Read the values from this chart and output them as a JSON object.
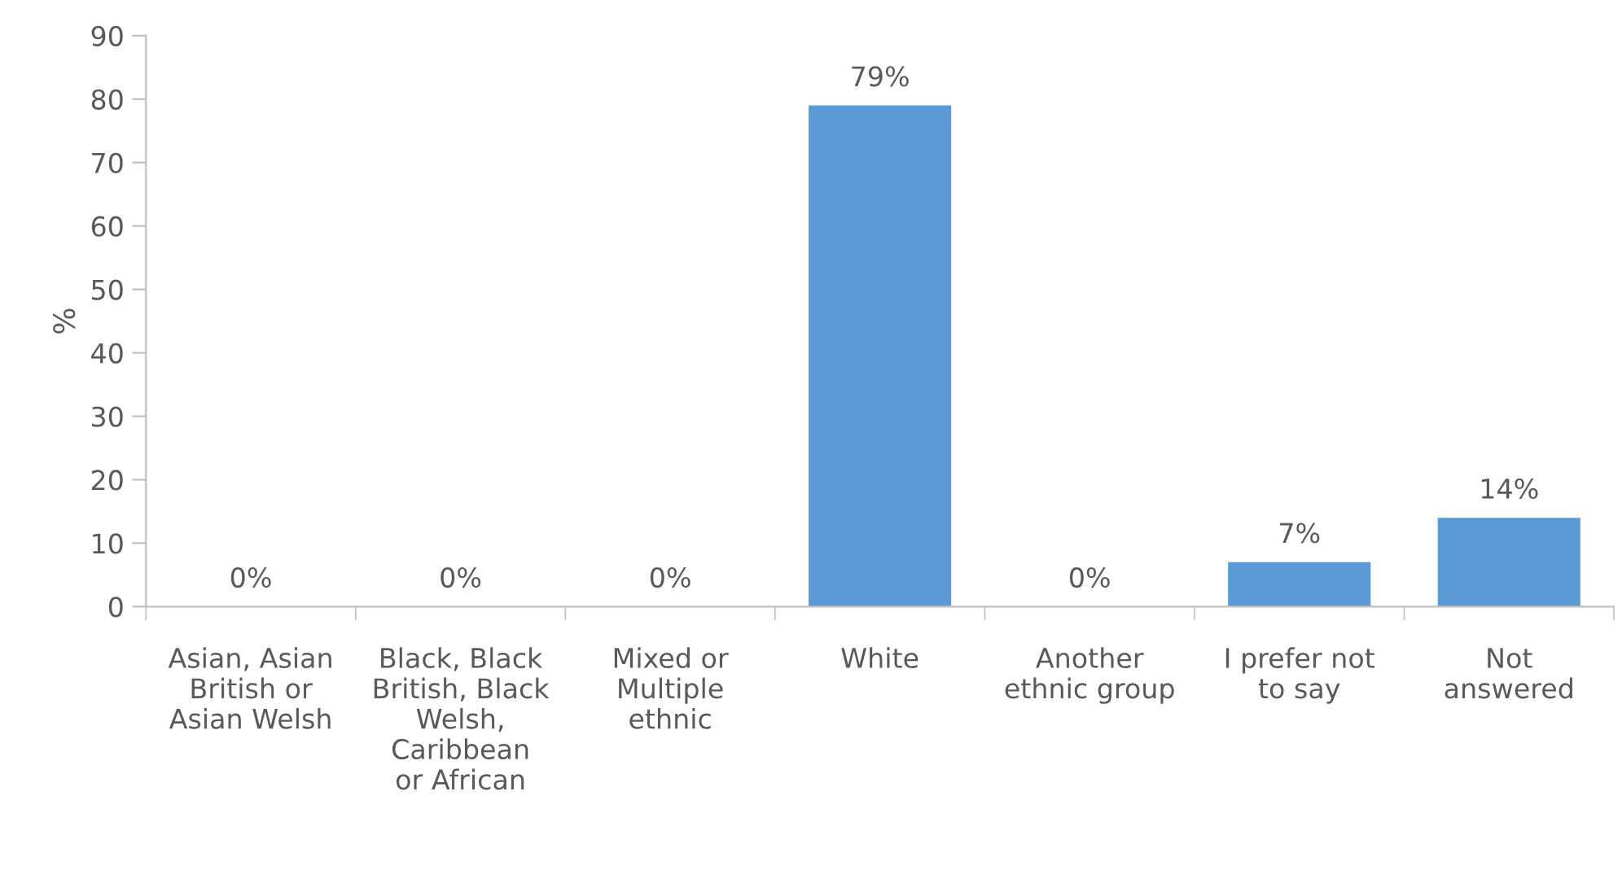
{
  "chart_data": {
    "type": "bar",
    "ylabel": "%",
    "categories": [
      "Asian, Asian\nBritish or\nAsian Welsh",
      "Black, Black\nBritish, Black\nWelsh,\nCaribbean\nor African",
      "Mixed or\nMultiple\nethnic",
      "White",
      "Another\nethnic group",
      "I prefer not\nto say",
      "Not\nanswered"
    ],
    "values": [
      0,
      0,
      0,
      79,
      0,
      7,
      14
    ],
    "value_labels": [
      "0%",
      "0%",
      "0%",
      "79%",
      "0%",
      "7%",
      "14%"
    ],
    "color": "#5b9bd5",
    "ylim": [
      0,
      90
    ],
    "yticks": [
      0,
      10,
      20,
      30,
      40,
      50,
      60,
      70,
      80,
      90
    ],
    "grid": false,
    "legend": false
  }
}
